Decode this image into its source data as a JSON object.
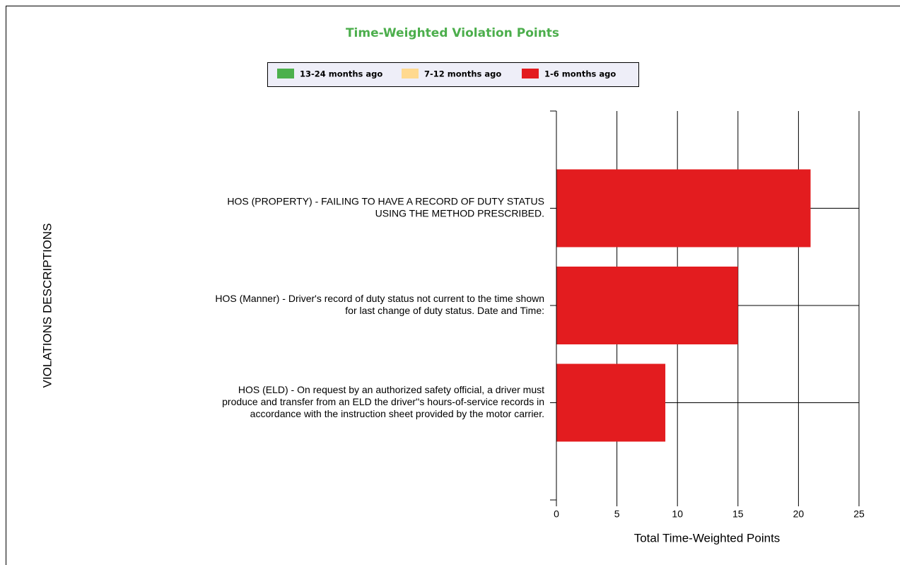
{
  "chart_data": {
    "type": "hbar-stacked",
    "title": "Time-Weighted Violation Points",
    "x_label": "Total Time-Weighted Points",
    "y_label": "VIOLATIONS DESCRIPTIONS",
    "categories": [
      [
        "HOS (PROPERTY) - FAILING TO HAVE A RECORD OF DUTY STATUS",
        "USING THE METHOD PRESCRIBED."
      ],
      [
        "HOS (Manner) - Driver's record of duty status not current to the time shown",
        "for last change of duty status. Date and Time:"
      ],
      [
        "HOS (ELD) - On request by an authorized safety official, a driver must",
        "produce and transfer from an ELD the driver''s hours-of-service records in",
        "accordance with the instruction sheet provided by the motor carrier."
      ]
    ],
    "series": [
      {
        "name": "13-24 months ago",
        "color": "#4cb04c",
        "values": [
          0,
          0,
          0
        ]
      },
      {
        "name": "7-12 months ago",
        "color": "#ffd98f",
        "values": [
          0,
          0,
          0
        ]
      },
      {
        "name": "1-6 months ago",
        "color": "#e31c1f",
        "values": [
          21,
          15,
          9
        ]
      }
    ],
    "xlim": [
      0,
      25
    ],
    "xticks": [
      0,
      5,
      10,
      15,
      20,
      25
    ],
    "grid": true
  }
}
